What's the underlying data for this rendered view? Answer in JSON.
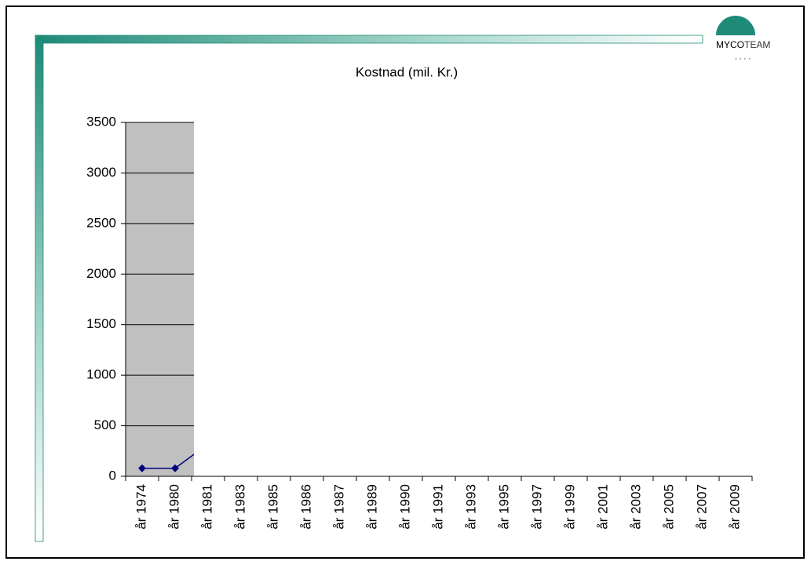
{
  "logo": [
    "MYCO",
    "TEAM"
  ],
  "chart_data": {
    "type": "line",
    "title": "Kostnad (mil. Kr.)",
    "categories": [
      "år 1974",
      "år 1980",
      "år 1981",
      "år 1983",
      "år 1985",
      "år 1986",
      "år 1987",
      "år 1989",
      "år 1990",
      "år 1991",
      "år 1993",
      "år 1995",
      "år 1997",
      "år 1999",
      "år 2001",
      "år 2003",
      "år 2005",
      "år 2007",
      "år 2009"
    ],
    "series": [
      {
        "color": "#000080",
        "values": [
          80,
          80,
          320,
          null,
          null,
          null,
          null,
          null,
          null,
          null,
          null,
          null,
          null,
          null,
          null,
          null,
          null,
          null,
          null
        ]
      }
    ],
    "ylim": [
      0,
      3500
    ],
    "yticks": [
      0,
      500,
      1000,
      1500,
      2000,
      2500,
      3000,
      3500
    ],
    "grid": true
  }
}
